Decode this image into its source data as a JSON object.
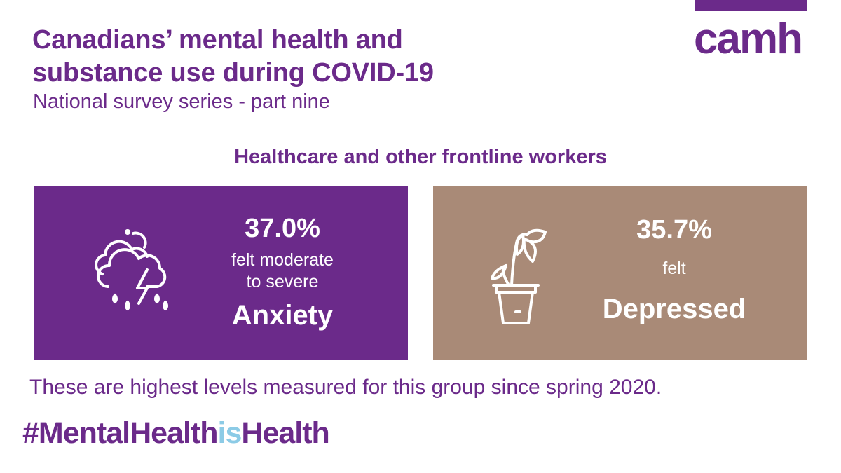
{
  "header": {
    "title_line1": "Canadians’ mental health and",
    "title_line2": "substance use during COVID-19",
    "subtitle": "National survey series - part nine"
  },
  "logo": {
    "text": "camh"
  },
  "section_heading": "Healthcare and other frontline workers",
  "cards": {
    "anxiety": {
      "percent": "37.0%",
      "line1": "felt moderate",
      "line2": "to severe",
      "label": "Anxiety",
      "icon": "storm-cloud-icon",
      "color": "#6b2a8a"
    },
    "depressed": {
      "percent": "35.7%",
      "line1": "felt",
      "label": "Depressed",
      "icon": "wilted-plant-icon",
      "color": "#a98a77"
    }
  },
  "footnote": "These are highest levels measured for this group since spring 2020.",
  "hashtag": {
    "part1": "#MentalHealth",
    "part2": "is",
    "part3": "Health"
  },
  "colors": {
    "brand": "#6b2a8a",
    "accent": "#8ccbe6"
  }
}
